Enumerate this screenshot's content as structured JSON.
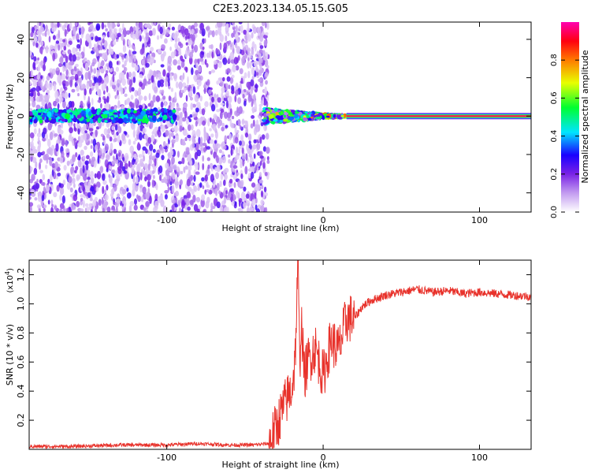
{
  "title": "C2E3.2023.134.05.15.G05",
  "chart_data": [
    {
      "type": "heatmap",
      "title": "",
      "xlabel": "Height of straight line (km)",
      "ylabel": "Frequency (Hz)",
      "xlim": [
        -188,
        133
      ],
      "ylim": [
        -50,
        49
      ],
      "xticks": [
        -100,
        0,
        100
      ],
      "yticks": [
        -40,
        -20,
        0,
        20,
        40
      ],
      "colorbar": {
        "label": "Normalized spectral amplitude",
        "range": [
          0.0,
          1.0
        ],
        "ticks": [
          "0.0",
          "0.2",
          "0.4",
          "0.6",
          "0.8"
        ],
        "tick_values": [
          0.0,
          0.2,
          0.4,
          0.6,
          0.8
        ],
        "colors": [
          "#ffffff",
          "#8a2be2",
          "#0000ff",
          "#00ffff",
          "#00ff00",
          "#ffff00",
          "#ff8000",
          "#ff0000",
          "#ff00aa"
        ]
      },
      "description_points": {
        "noise_region_x": [
          -188,
          -35
        ],
        "noise_band_x": [
          -188,
          -95
        ],
        "noise_band_freq": 0,
        "transition_x": [
          -38,
          15
        ],
        "carrier_x": [
          15,
          133
        ],
        "carrier_freq": 0,
        "carrier_amplitude": 0.95
      }
    },
    {
      "type": "line",
      "title": "",
      "xlabel": "Height of straight line (km)",
      "ylabel": "SNR (10 * v/v)",
      "scale_label": "(x10",
      "scale_exp": "4",
      "scale_close": ")",
      "xlim": [
        -188,
        133
      ],
      "ylim": [
        0.0,
        1.3
      ],
      "xticks": [
        -100,
        0,
        100
      ],
      "yticks": [
        0.2,
        0.4,
        0.6,
        0.8,
        1.0,
        1.2
      ],
      "ytick_labels": [
        "0.2",
        "0.4",
        "0.6",
        "0.8",
        "1.0",
        "1.2"
      ],
      "series": [
        {
          "color": "#e8322b",
          "x": [
            -188,
            -160,
            -130,
            -100,
            -80,
            -60,
            -45,
            -35,
            -30,
            -25,
            -20,
            -18,
            -16,
            -15,
            -14,
            -12,
            -10,
            -5,
            0,
            5,
            10,
            15,
            20,
            25,
            30,
            40,
            50,
            60,
            70,
            80,
            90,
            100,
            110,
            120,
            133
          ],
          "y": [
            0.02,
            0.02,
            0.03,
            0.03,
            0.04,
            0.03,
            0.03,
            0.04,
            0.15,
            0.3,
            0.42,
            0.6,
            1.3,
            0.55,
            0.9,
            0.5,
            0.6,
            0.7,
            0.5,
            0.75,
            0.68,
            0.9,
            0.9,
            0.98,
            1.02,
            1.06,
            1.08,
            1.1,
            1.08,
            1.09,
            1.07,
            1.08,
            1.07,
            1.06,
            1.05
          ]
        }
      ]
    }
  ]
}
